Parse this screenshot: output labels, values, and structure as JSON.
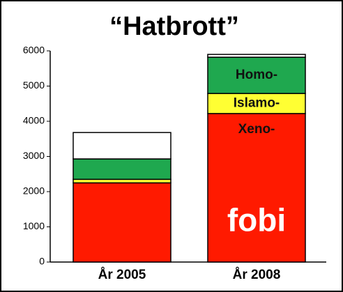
{
  "chart_data": {
    "type": "stacked_bar",
    "title": "“Hatbrott”",
    "categories": [
      "År 2005",
      "År 2008"
    ],
    "series": [
      {
        "name": "Xeno-",
        "color": "#ff1a00",
        "values": [
          2250,
          4220
        ]
      },
      {
        "name": "Islamo-",
        "color": "#ffff33",
        "values": [
          100,
          570
        ]
      },
      {
        "name": "Homo-",
        "color": "#1fa84f",
        "values": [
          580,
          1030
        ]
      },
      {
        "color": "#ffffff",
        "values": [
          750,
          80
        ]
      }
    ],
    "annotation": "fobi",
    "ylim": [
      0,
      6000
    ],
    "yticks": [
      0,
      1000,
      2000,
      3000,
      4000,
      5000,
      6000
    ]
  }
}
